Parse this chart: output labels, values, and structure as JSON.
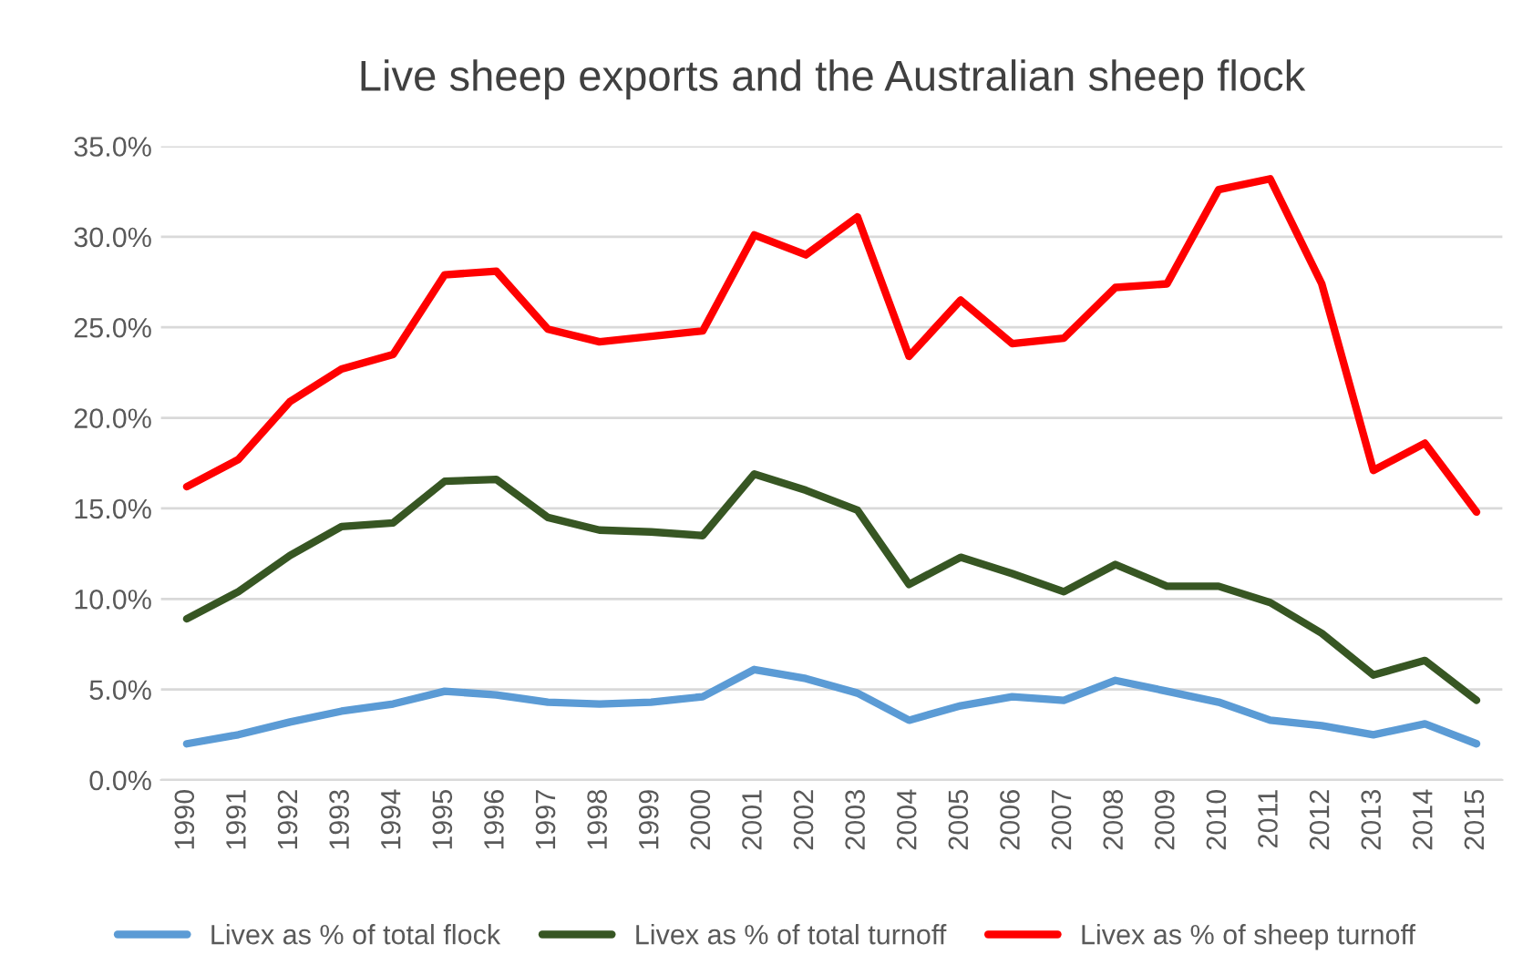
{
  "chart_data": {
    "type": "line",
    "title": "Live sheep exports and the Australian sheep flock",
    "categories": [
      "1990",
      "1991",
      "1992",
      "1993",
      "1994",
      "1995",
      "1996",
      "1997",
      "1998",
      "1999",
      "2000",
      "2001",
      "2002",
      "2003",
      "2004",
      "2005",
      "2006",
      "2007",
      "2008",
      "2009",
      "2010",
      "2011",
      "2012",
      "2013",
      "2014",
      "2015"
    ],
    "series": [
      {
        "name": "Livex as % of total flock",
        "color": "#5b9bd5",
        "values": [
          2.0,
          2.5,
          3.2,
          3.8,
          4.2,
          4.9,
          4.7,
          4.3,
          4.2,
          4.3,
          4.6,
          6.1,
          5.6,
          4.8,
          3.3,
          4.1,
          4.6,
          4.4,
          5.5,
          4.9,
          4.3,
          3.3,
          3.0,
          2.5,
          3.1,
          2.0
        ]
      },
      {
        "name": "Livex as % of total turnoff",
        "color": "#375623",
        "values": [
          8.9,
          10.4,
          12.4,
          14.0,
          14.2,
          16.5,
          16.6,
          14.5,
          13.8,
          13.7,
          13.5,
          16.9,
          16.0,
          14.9,
          10.8,
          12.3,
          11.4,
          10.4,
          11.9,
          10.7,
          10.7,
          9.8,
          8.1,
          5.8,
          6.6,
          4.4
        ]
      },
      {
        "name": "Livex as % of sheep turnoff",
        "color": "#ff0000",
        "values": [
          16.2,
          17.7,
          20.9,
          22.7,
          23.5,
          27.9,
          28.1,
          24.9,
          24.2,
          24.5,
          24.8,
          30.1,
          29.0,
          31.1,
          23.4,
          26.5,
          24.1,
          24.4,
          27.2,
          27.4,
          32.6,
          33.2,
          27.4,
          17.1,
          18.6,
          14.8
        ]
      }
    ],
    "ylim": [
      0,
      35
    ],
    "yticks": [
      {
        "value": 0,
        "label": "0.0%"
      },
      {
        "value": 5,
        "label": "5.0%"
      },
      {
        "value": 10,
        "label": "10.0%"
      },
      {
        "value": 15,
        "label": "15.0%"
      },
      {
        "value": 20,
        "label": "20.0%"
      },
      {
        "value": 25,
        "label": "25.0%"
      },
      {
        "value": 30,
        "label": "30.0%"
      },
      {
        "value": 35,
        "label": "35.0%"
      }
    ],
    "grid": "y",
    "legend": "bottom",
    "marker": "none",
    "line_style": "solid"
  }
}
